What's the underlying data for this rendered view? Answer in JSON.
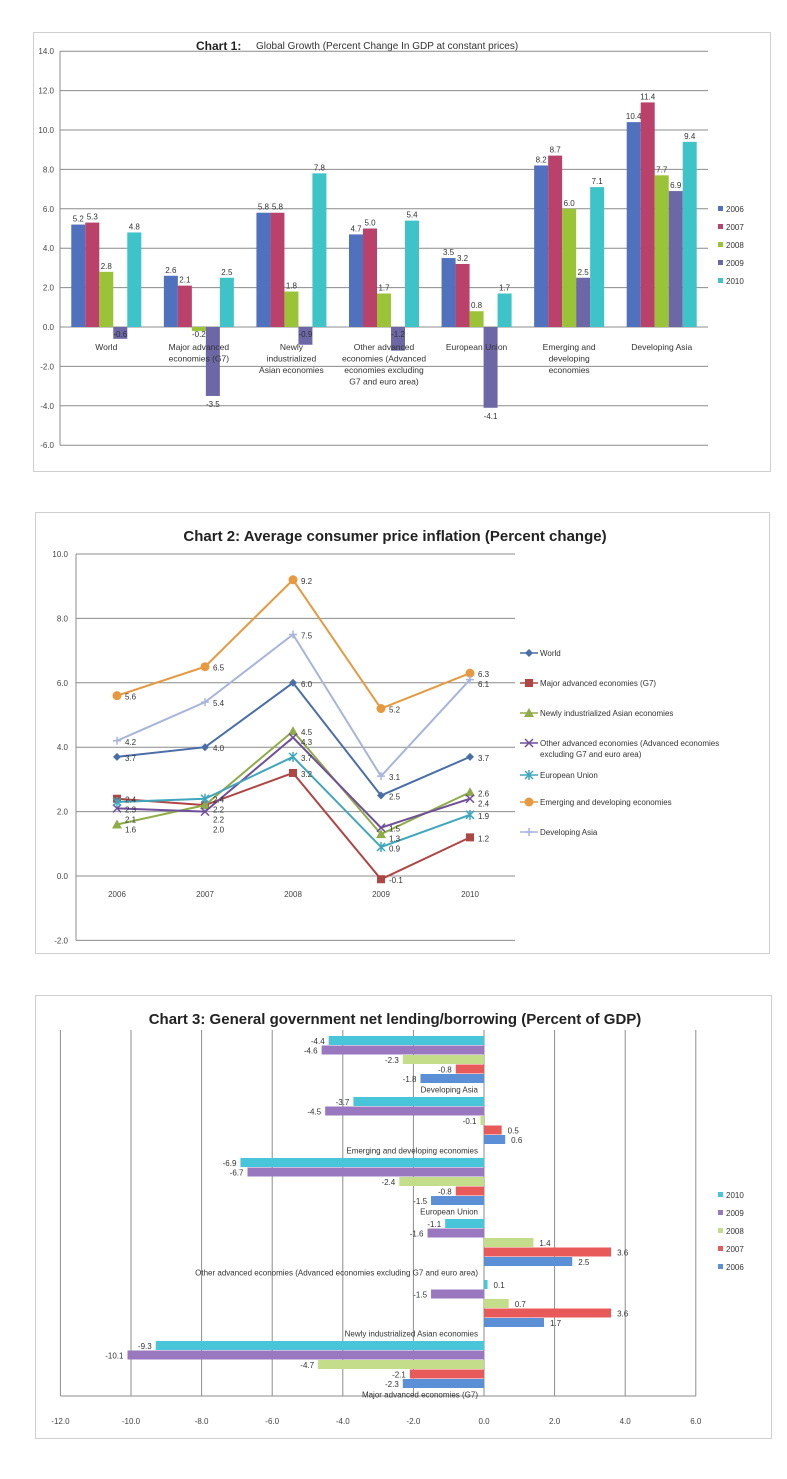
{
  "chart_data": [
    {
      "type": "bar",
      "title_prefix": "Chart 1:",
      "title": "Global Growth (Percent Change In GDP at constant prices)",
      "categories": [
        "World",
        "Major advanced economies (G7)",
        "Newly industrialized Asian economies",
        "Other advanced economies (Advanced economies excluding G7 and euro area)",
        "European Union",
        "Emerging and developing economies",
        "Developing Asia"
      ],
      "series": [
        {
          "name": "2006",
          "color": "#4f71be",
          "values": [
            5.2,
            2.6,
            5.8,
            4.7,
            3.5,
            8.2,
            10.4
          ]
        },
        {
          "name": "2007",
          "color": "#b9416a",
          "values": [
            5.3,
            2.1,
            5.8,
            5.0,
            3.2,
            8.7,
            11.4
          ]
        },
        {
          "name": "2008",
          "color": "#9bc337",
          "values": [
            2.8,
            -0.2,
            1.8,
            1.7,
            0.8,
            6.0,
            7.7
          ]
        },
        {
          "name": "2009",
          "color": "#6d67a6",
          "values": [
            -0.6,
            -3.5,
            -0.9,
            -1.2,
            -4.1,
            2.5,
            6.9
          ]
        },
        {
          "name": "2010",
          "color": "#3ec3c8",
          "values": [
            4.8,
            2.5,
            7.8,
            5.4,
            1.7,
            7.1,
            9.4
          ]
        }
      ],
      "ylim": [
        -6,
        14
      ],
      "yticks": [
        "14.0",
        "12.0",
        "10.0",
        "8.0",
        "6.0",
        "4.0",
        "2.0",
        "0.0",
        "-2.0",
        "-4.0",
        "-6.0"
      ],
      "legend": "right",
      "grid": true
    },
    {
      "type": "line",
      "title": "Chart 2: Average consumer price inflation (Percent change)",
      "x": [
        "2006",
        "2007",
        "2008",
        "2009",
        "2010"
      ],
      "series": [
        {
          "name": "World",
          "color": "#4a6fa8",
          "marker": "diamond",
          "values": [
            3.7,
            4.0,
            6.0,
            2.5,
            3.7
          ]
        },
        {
          "name": "Major advanced economies (G7)",
          "color": "#b04644",
          "marker": "square",
          "values": [
            2.4,
            2.2,
            3.2,
            -0.1,
            1.2
          ]
        },
        {
          "name": "Newly industrialized Asian economies",
          "color": "#8fac48",
          "marker": "triangle",
          "values": [
            1.6,
            2.2,
            4.5,
            1.3,
            2.6
          ]
        },
        {
          "name": "Other advanced economies (Advanced economies excluding G7 and euro area)",
          "color": "#6f4f9a",
          "marker": "x",
          "values": [
            2.1,
            2.0,
            4.3,
            1.5,
            2.4
          ]
        },
        {
          "name": "European Union",
          "color": "#3ea6bd",
          "marker": "star",
          "values": [
            2.3,
            2.4,
            3.7,
            0.9,
            1.9
          ]
        },
        {
          "name": "Emerging and developing economies",
          "color": "#e6993e",
          "marker": "circle",
          "values": [
            5.6,
            6.5,
            9.2,
            5.2,
            6.3
          ]
        },
        {
          "name": "Developing Asia",
          "color": "#a7b5dc",
          "marker": "plus",
          "values": [
            4.2,
            5.4,
            7.5,
            3.1,
            6.1
          ]
        }
      ],
      "ylim": [
        -2,
        10
      ],
      "yticks": [
        "10.0",
        "8.0",
        "6.0",
        "4.0",
        "2.0",
        "0.0",
        "-2.0"
      ],
      "legend": "right",
      "grid": true
    },
    {
      "type": "bar",
      "orientation": "horizontal",
      "title": "Chart 3: General government net lending/borrowing (Percent of GDP)",
      "categories": [
        "Developing Asia",
        "Emerging and developing economies",
        "European Union",
        "Other advanced economies (Advanced economies excluding G7 and euro area)",
        "Newly industrialized Asian economies",
        "Major advanced economies (G7)"
      ],
      "series": [
        {
          "name": "2010",
          "color": "#48c5d8",
          "values": [
            -4.4,
            -3.7,
            -6.9,
            -1.1,
            0.1,
            -9.3
          ]
        },
        {
          "name": "2009",
          "color": "#9a78c0",
          "values": [
            -4.6,
            -4.5,
            -6.7,
            -1.6,
            -1.5,
            -10.1
          ]
        },
        {
          "name": "2008",
          "color": "#c4dd8a",
          "values": [
            -2.3,
            -0.1,
            -2.4,
            1.4,
            0.7,
            -4.7
          ]
        },
        {
          "name": "2007",
          "color": "#e8595a",
          "values": [
            -0.8,
            0.5,
            -0.8,
            3.6,
            3.6,
            -2.1
          ]
        },
        {
          "name": "2006",
          "color": "#5b8fd6",
          "values": [
            -1.8,
            0.6,
            -1.5,
            2.5,
            1.7,
            -2.3
          ]
        }
      ],
      "xlim": [
        -12,
        6
      ],
      "xticks": [
        "-12.0",
        "-10.0",
        "-8.0",
        "-6.0",
        "-4.0",
        "-2.0",
        "0.0",
        "2.0",
        "4.0",
        "6.0"
      ],
      "legend": "right",
      "grid": true
    }
  ]
}
